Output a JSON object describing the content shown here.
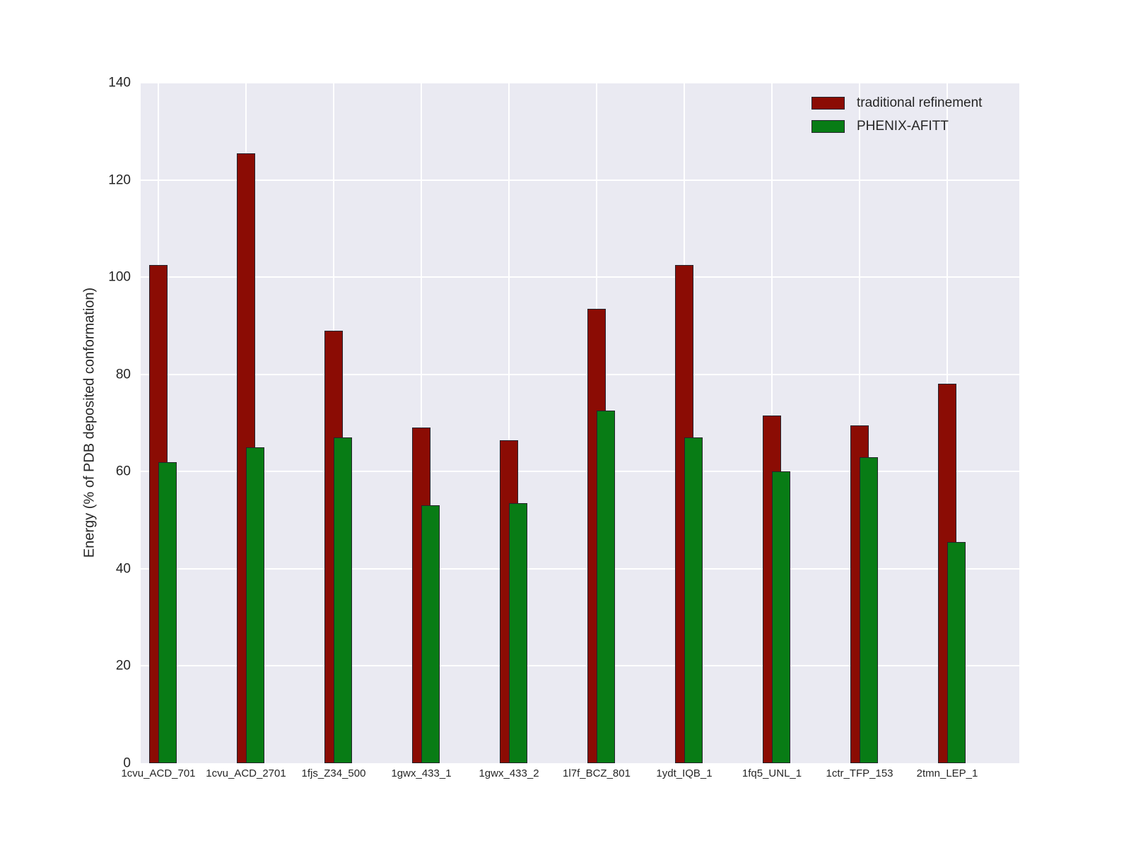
{
  "chart_data": {
    "type": "bar",
    "title": "",
    "categories": [
      "1cvu_ACD_701",
      "1cvu_ACD_2701",
      "1fjs_Z34_500",
      "1gwx_433_1",
      "1gwx_433_2",
      "1l7f_BCZ_801",
      "1ydt_IQB_1",
      "1fq5_UNL_1",
      "1ctr_TFP_153",
      "2tmn_LEP_1"
    ],
    "series": [
      {
        "name": "traditional refinement",
        "color": "#8b0c04",
        "values": [
          102.5,
          125.5,
          89,
          69,
          66.5,
          93.5,
          102.5,
          71.5,
          69.5,
          78
        ]
      },
      {
        "name": "PHENIX-AFITT",
        "color": "#087c15",
        "values": [
          62,
          65,
          67,
          53,
          53.5,
          72.5,
          67,
          60,
          63,
          45.5
        ]
      }
    ],
    "xlabel": "",
    "ylabel": "Energy (% of PDB deposited conformation)",
    "ylim": [
      0,
      140
    ],
    "yticks": [
      0,
      20,
      40,
      60,
      80,
      100,
      120,
      140
    ],
    "grid": true,
    "legend_position": "upper right",
    "colors": {
      "figure_background": "#ffffff",
      "plot_background": "#eaeaf2",
      "grid": "#ffffff",
      "bar_edge": "#24242c",
      "text": "#262626"
    }
  }
}
